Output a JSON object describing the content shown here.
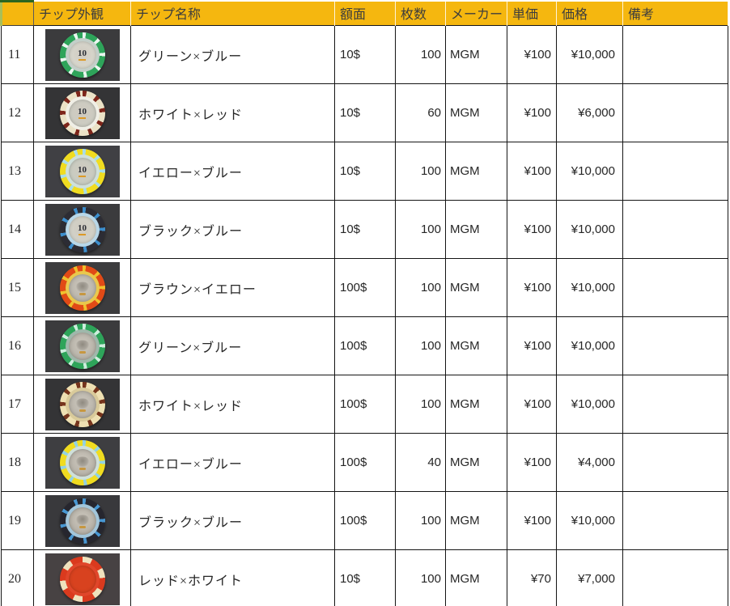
{
  "header": {
    "cells": [
      "",
      "チップ外観",
      "チップ名称",
      "額面",
      "枚数",
      "メーカー",
      "単価",
      "価格",
      "備考"
    ]
  },
  "colors": {
    "header_bg": "#F5B70F",
    "corner_border_green": "#2c661f",
    "grid_line": "#151515"
  },
  "rows": [
    {
      "no": "11",
      "name": "グリーン×ブルー",
      "face": "10$",
      "count": "100",
      "maker": "MGM",
      "unit": "¥100",
      "price": "¥10,000",
      "note": "",
      "chip": {
        "icon": "green-white-spot-chip",
        "outer": "#2ea45a",
        "spots": "#e9f6ef",
        "ring": "#c3cfc9",
        "center": "#dadad0",
        "label": "10",
        "style": "dots",
        "emblem": false,
        "photo_bg": "#3b3b3d"
      }
    },
    {
      "no": "12",
      "name": "ホワイト×レッド",
      "face": "10$",
      "count": "60",
      "maker": "MGM",
      "unit": "¥100",
      "price": "¥6,000",
      "note": "",
      "chip": {
        "icon": "white-red-stripe-chip",
        "outer": "#ebe2c6",
        "spots": "#7e261b",
        "ring": "#f0efe6",
        "center": "#ccccc2",
        "label": "10",
        "style": "stripes",
        "emblem": false,
        "photo_bg": "#343436"
      }
    },
    {
      "no": "13",
      "name": "イエロー×ブルー",
      "face": "10$",
      "count": "100",
      "maker": "MGM",
      "unit": "¥100",
      "price": "¥10,000",
      "note": "",
      "chip": {
        "icon": "yellow-blue-spot-chip",
        "outer": "#f0dc20",
        "spots": "#a8dde9",
        "ring": "#cfe0da",
        "center": "#c7ccc1",
        "label": "10",
        "style": "dots",
        "emblem": false,
        "photo_bg": "#404044"
      }
    },
    {
      "no": "14",
      "name": "ブラック×ブルー",
      "face": "10$",
      "count": "100",
      "maker": "MGM",
      "unit": "¥100",
      "price": "¥10,000",
      "note": "",
      "chip": {
        "icon": "black-blue-spot-chip",
        "outer": "#2c2c34",
        "spots": "#3c8ecd",
        "ring": "#b8d7e8",
        "center": "#d3d3c9",
        "label": "10",
        "style": "dots",
        "emblem": false,
        "photo_bg": "#3b3b3d"
      }
    },
    {
      "no": "15",
      "name": "ブラウン×イエロー",
      "face": "100$",
      "count": "100",
      "maker": "MGM",
      "unit": "¥100",
      "price": "¥10,000",
      "note": "",
      "chip": {
        "icon": "orange-yellow-spot-chip",
        "outer": "#e14a16",
        "spots": "#f0c02c",
        "ring": "#e9c84d",
        "center": "#b5b0a6",
        "label": "",
        "style": "dots",
        "emblem": true,
        "photo_bg": "#3c3c3e"
      }
    },
    {
      "no": "16",
      "name": "グリーン×ブルー",
      "face": "100$",
      "count": "100",
      "maker": "MGM",
      "unit": "¥100",
      "price": "¥10,000",
      "note": "",
      "chip": {
        "icon": "green-white-spot-chip",
        "outer": "#2ea45a",
        "spots": "#cdeedd",
        "ring": "#9fb8ab",
        "center": "#b2aea4",
        "label": "",
        "style": "dots",
        "emblem": true,
        "photo_bg": "#3b3b3d"
      }
    },
    {
      "no": "17",
      "name": "ホワイト×レッド",
      "face": "100$",
      "count": "100",
      "maker": "MGM",
      "unit": "¥100",
      "price": "¥10,000",
      "note": "",
      "chip": {
        "icon": "cream-brown-stripe-chip",
        "outer": "#eee0b2",
        "spots": "#76351d",
        "ring": "#d9ca9a",
        "center": "#b4afa5",
        "label": "",
        "style": "stripes",
        "emblem": true,
        "photo_bg": "#343436"
      }
    },
    {
      "no": "18",
      "name": "イエロー×ブルー",
      "face": "100$",
      "count": "40",
      "maker": "MGM",
      "unit": "¥100",
      "price": "¥4,000",
      "note": "",
      "chip": {
        "icon": "yellow-blue-spot-chip",
        "outer": "#f0dc20",
        "spots": "#93d2e2",
        "ring": "#cfe0da",
        "center": "#b2ada3",
        "label": "",
        "style": "dots",
        "emblem": true,
        "photo_bg": "#3e3e41"
      }
    },
    {
      "no": "19",
      "name": "ブラック×ブルー",
      "face": "100$",
      "count": "100",
      "maker": "MGM",
      "unit": "¥100",
      "price": "¥10,000",
      "note": "",
      "chip": {
        "icon": "black-blue-spot-chip",
        "outer": "#26262e",
        "spots": "#4897d2",
        "ring": "#a3c6da",
        "center": "#b0aba1",
        "label": "",
        "style": "dots",
        "emblem": true,
        "photo_bg": "#39393c"
      }
    },
    {
      "no": "20",
      "name": "レッド×ホワイト",
      "face": "10$",
      "count": "100",
      "maker": "MGM",
      "unit": "¥70",
      "price": "¥7,000",
      "note": "",
      "chip": {
        "icon": "red-white-dice-chip",
        "outer": "#da3a1e",
        "spots": "#efe2bd",
        "ring": "#e0462a",
        "center": "#d8421f",
        "label": "",
        "style": "dice",
        "emblem": false,
        "photo_bg": "#474243"
      }
    }
  ]
}
